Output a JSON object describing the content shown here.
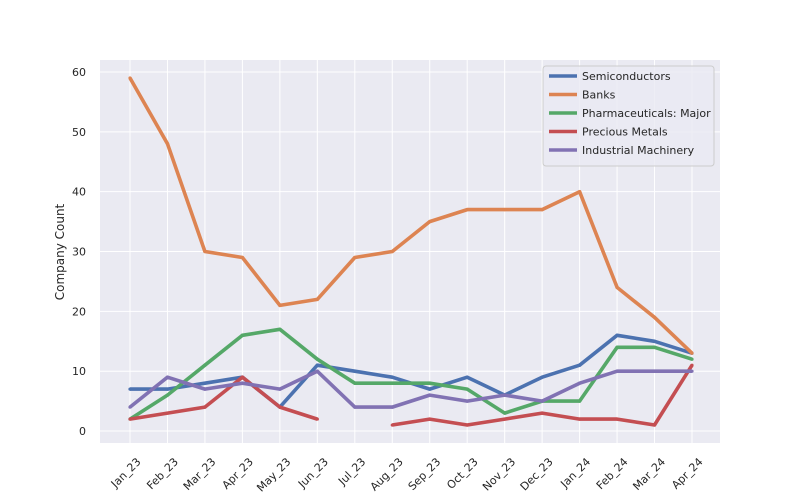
{
  "chart_data": {
    "type": "line",
    "title": "",
    "xlabel": "",
    "ylabel": "Company Count",
    "ylim": [
      -2,
      62
    ],
    "yticks": [
      0,
      10,
      20,
      30,
      40,
      50,
      60
    ],
    "grid": true,
    "legend_position": "top-right",
    "categories": [
      "Jan_23",
      "Feb_23",
      "Mar_23",
      "Apr_23",
      "May_23",
      "Jun_23",
      "Jul_23",
      "Aug_23",
      "Sep_23",
      "Oct_23",
      "Nov_23",
      "Dec_23",
      "Jan_24",
      "Feb_24",
      "Mar_24",
      "Apr_24"
    ],
    "series": [
      {
        "name": "Semiconductors",
        "color": "#4c72b0",
        "values": [
          7,
          7,
          8,
          9,
          4,
          11,
          10,
          9,
          7,
          9,
          6,
          9,
          11,
          16,
          15,
          13
        ]
      },
      {
        "name": "Banks",
        "color": "#dd8452",
        "values": [
          59,
          48,
          30,
          29,
          21,
          22,
          29,
          30,
          35,
          37,
          37,
          37,
          40,
          24,
          19,
          13
        ]
      },
      {
        "name": "Pharmaceuticals: Major",
        "color": "#55a868",
        "values": [
          2,
          6,
          11,
          16,
          17,
          12,
          8,
          8,
          8,
          7,
          3,
          5,
          5,
          14,
          14,
          12
        ]
      },
      {
        "name": "Precious Metals",
        "color": "#c44e52",
        "values": [
          2,
          3,
          4,
          9,
          4,
          2,
          null,
          1,
          2,
          1,
          2,
          3,
          2,
          2,
          1,
          11
        ]
      },
      {
        "name": "Industrial Machinery",
        "color": "#8172b3",
        "values": [
          4,
          9,
          7,
          8,
          7,
          10,
          4,
          4,
          6,
          5,
          6,
          5,
          8,
          10,
          10,
          10
        ]
      }
    ]
  }
}
